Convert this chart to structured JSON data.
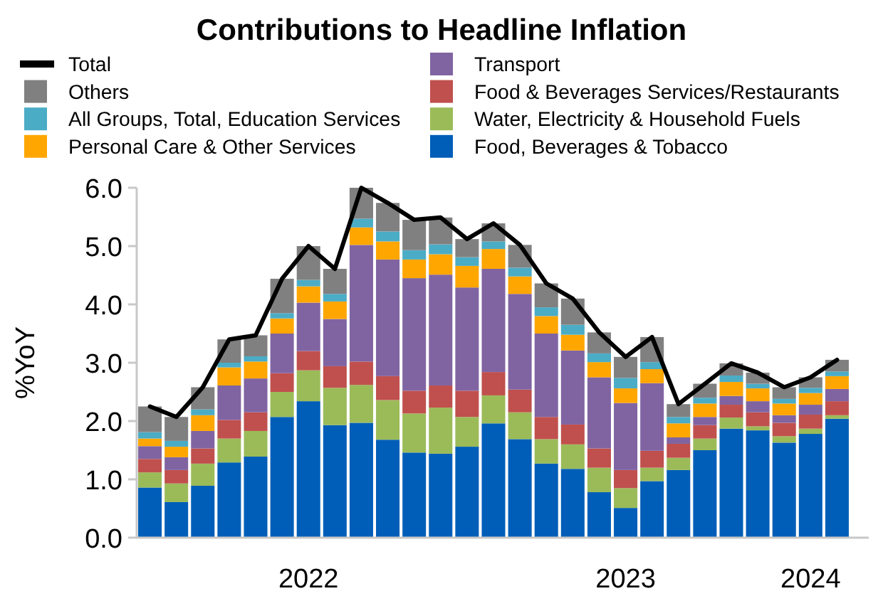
{
  "chart_data": {
    "type": "bar",
    "title": "Contributions to Headline Inflation",
    "ylabel": "%YoY",
    "stacked": true,
    "legend": "top",
    "categories": [
      null,
      null,
      null,
      null,
      null,
      null,
      "2022",
      null,
      null,
      null,
      null,
      null,
      null,
      null,
      null,
      null,
      null,
      null,
      "2023",
      null,
      null,
      null,
      null,
      null,
      null,
      "2024",
      null
    ],
    "ylim": [
      0,
      6
    ],
    "yticks": [
      {
        "value": 0,
        "label": "0.0"
      },
      {
        "value": 1,
        "label": "1.0"
      },
      {
        "value": 2,
        "label": "2.0"
      },
      {
        "value": 3,
        "label": "3.0"
      },
      {
        "value": 4,
        "label": "4.0"
      },
      {
        "value": 5,
        "label": "5.0"
      },
      {
        "value": 6,
        "label": "6.0"
      }
    ],
    "series": [
      {
        "name": "Food, Beverages & Tobacco",
        "color": "#005eb8",
        "values": [
          0.86,
          0.61,
          0.89,
          1.29,
          1.39,
          2.07,
          2.34,
          1.93,
          1.97,
          1.68,
          1.46,
          1.44,
          1.56,
          1.96,
          1.69,
          1.27,
          1.18,
          0.78,
          0.51,
          0.97,
          1.16,
          1.5,
          1.87,
          1.84,
          1.63,
          1.78,
          2.04
        ]
      },
      {
        "name": "Water, Electricity & Household Fuels",
        "color": "#9bbb59",
        "values": [
          0.26,
          0.32,
          0.38,
          0.41,
          0.44,
          0.43,
          0.53,
          0.64,
          0.65,
          0.68,
          0.67,
          0.79,
          0.51,
          0.48,
          0.46,
          0.42,
          0.42,
          0.42,
          0.34,
          0.23,
          0.21,
          0.2,
          0.19,
          0.07,
          0.11,
          0.09,
          0.06
        ]
      },
      {
        "name": "Food & Beverages Services/Restaurants",
        "color": "#c0504d",
        "values": [
          0.23,
          0.23,
          0.26,
          0.32,
          0.32,
          0.32,
          0.33,
          0.37,
          0.4,
          0.41,
          0.39,
          0.38,
          0.45,
          0.4,
          0.39,
          0.38,
          0.34,
          0.33,
          0.31,
          0.29,
          0.24,
          0.23,
          0.22,
          0.24,
          0.23,
          0.24,
          0.24
        ]
      },
      {
        "name": "Transport",
        "color": "#8064a2",
        "values": [
          0.22,
          0.22,
          0.3,
          0.59,
          0.58,
          0.68,
          0.83,
          0.81,
          2.0,
          2.0,
          1.93,
          1.9,
          1.77,
          1.77,
          1.64,
          1.43,
          1.27,
          1.22,
          1.15,
          1.16,
          0.11,
          0.14,
          0.15,
          0.19,
          0.13,
          0.17,
          0.21
        ]
      },
      {
        "name": "Personal Care & Other Services",
        "color": "#ffa600",
        "values": [
          0.13,
          0.18,
          0.27,
          0.31,
          0.29,
          0.26,
          0.28,
          0.3,
          0.3,
          0.31,
          0.32,
          0.35,
          0.37,
          0.34,
          0.3,
          0.3,
          0.27,
          0.26,
          0.25,
          0.24,
          0.24,
          0.23,
          0.24,
          0.22,
          0.2,
          0.2,
          0.22
        ]
      },
      {
        "name": "All Groups, Total, Education Services",
        "color": "#4bacc6",
        "values": [
          0.11,
          0.1,
          0.1,
          0.08,
          0.09,
          0.09,
          0.11,
          0.13,
          0.15,
          0.17,
          0.16,
          0.17,
          0.15,
          0.13,
          0.15,
          0.15,
          0.17,
          0.15,
          0.18,
          0.12,
          0.11,
          0.1,
          0.11,
          0.08,
          0.08,
          0.09,
          0.08
        ]
      },
      {
        "name": "Others",
        "color": "#808080",
        "values": [
          0.44,
          0.41,
          0.38,
          0.4,
          0.36,
          0.59,
          0.58,
          0.43,
          0.53,
          0.49,
          0.52,
          0.46,
          0.31,
          0.31,
          0.39,
          0.41,
          0.45,
          0.36,
          0.36,
          0.43,
          0.22,
          0.24,
          0.21,
          0.19,
          0.2,
          0.18,
          0.2
        ]
      },
      {
        "name": "Total",
        "type": "line",
        "color": "#000000",
        "values": [
          2.25,
          2.07,
          2.58,
          3.4,
          3.47,
          4.44,
          5.0,
          4.61,
          6.0,
          5.74,
          5.45,
          5.49,
          5.12,
          5.39,
          5.02,
          4.36,
          4.1,
          3.52,
          3.1,
          3.44,
          2.29,
          2.64,
          2.99,
          2.83,
          2.58,
          2.75,
          3.05
        ]
      }
    ]
  }
}
